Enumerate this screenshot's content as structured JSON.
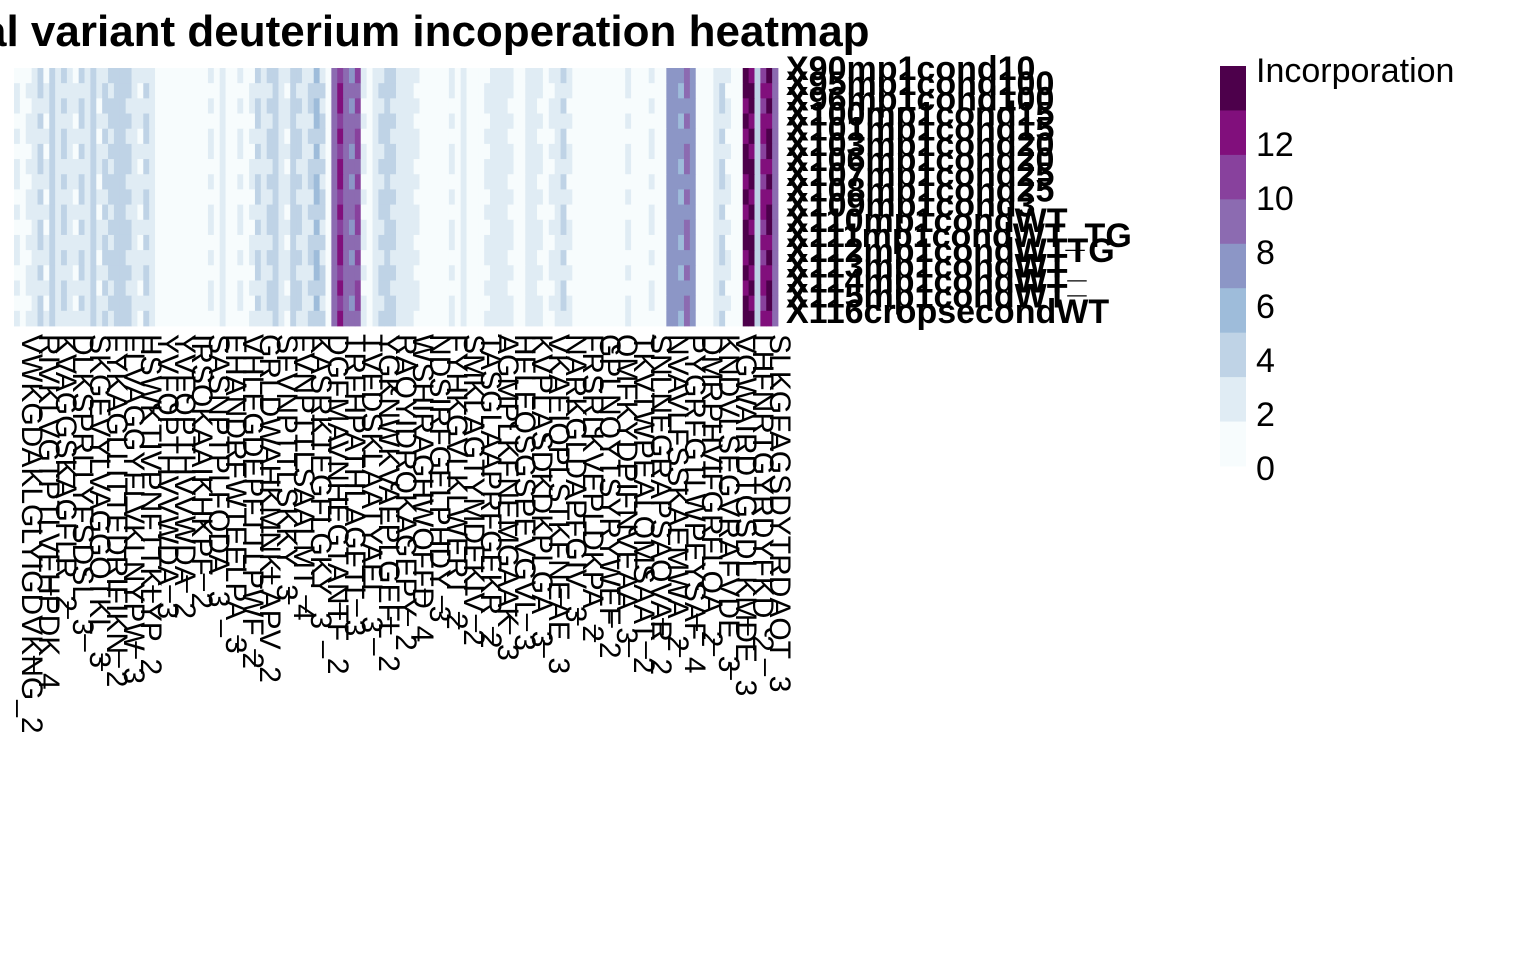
{
  "chart_data": {
    "type": "heatmap",
    "title": "al variant deuterium incoperation heatmap",
    "rows": [
      "X90mp1cond10",
      "X95mp1cond100",
      "X96mp1cond100",
      "X100mp1cond15",
      "X101mp1cond15",
      "X103mp1cond20",
      "X106mp1cond20",
      "X107mp1cond25",
      "X108mp1cond25",
      "X109mp1cond3",
      "X110mp1condWT",
      "X111mp1condWT_TG",
      "X112mp1condWTTG",
      "X113mp1condWT_",
      "X114mp1condWT_",
      "X115mp1condWT",
      "X116cropsecondWT"
    ],
    "col_labels": [
      "VWKGDAKLGLYIGDVKNG_2",
      "RIVKLVGTPTLVEHPDK_4",
      "KVAGGSKAGFLR_2",
      "DLKSPRLLYFSDSL_3",
      "SKGEVYLVAGGQTKL_3",
      "FYKAGLLITTEDRIFIKN_2",
      "FLVAGGYFLVKLNYPW_3",
      "HSWKTIVPNFTTKLYP_2",
      "YVFQPTHVVWDA_3",
      "YVFQPTHVVWDA_2",
      "IRSQKAAIKHKPF_2",
      "SASNPTPLFQDA_3",
      "EHANDRFWTEELPA_3",
      "VHLEGDEPFTTLPWF_2",
      "GRLDWAHKMNKLAPV_2",
      "SFVNPTTLSKKY_3",
      "FVNPTTLSAALMT_4",
      "KASRKTEGFLGKY_3",
      "DGFMAVNHEGTANTF_2",
      "TRFHPATHLAGFTL_3",
      "TVFDSKLAATYAEL_3",
      "YGKNWKVAFPLGEFL_2",
      "RAQYIDRQKAGEPY_2",
      "WSHIRAGHWQFFD_4",
      "NDSIRFGELPHDY_3",
      "FYHKGVLKLWERT_2",
      "SMKLAGTYMDEKIV_2",
      "TASGLAAPRFGEKR_2",
      "AGMPLKFNEMGAAK_3",
      "HFLEQSGSPEVGVL_3",
      "KVPLASDKDKPLGA_3",
      "VKAEIQPLSTKFNEAE_3",
      "NARKGLDAPFGIV_3",
      "FRSRLKVEPLDKPA_2",
      "GPLNQYTSYRYWEF_2",
      "QMFKYDPIFNVEAA_3",
      "TKVTWPEALQMSAAT_2",
      "SNLNEGRAPSAQVAR_2",
      "NVAVLFSSKAEMWA_2",
      "PYGRFGTLWPEYSAF_4",
      "DMRPHVIFGRFLQA_2",
      "KNDVLSEGVRAFVDE_3",
      "VGWAIRDTGSDLKMDE_3",
      "LHFNRTGYRDYFKD_2",
      "SLKGFAGSDYTRDAQT_3"
    ],
    "n_cols": 130,
    "color_scale": {
      "name": "Incorporation",
      "breaks": [
        0,
        2,
        4,
        6,
        8,
        10,
        12
      ],
      "tick_labels": [
        "0",
        "2",
        "4",
        "6",
        "8",
        "10",
        "12"
      ],
      "colors": [
        "#f7fcfd",
        "#e0ecf4",
        "#bfd3e6",
        "#9ebcda",
        "#8c96c6",
        "#8c6bb1",
        "#88419d",
        "#810f7c",
        "#4d004b"
      ]
    },
    "column_profile": [
      2,
      1,
      2,
      3,
      4,
      2,
      5,
      3,
      4,
      3,
      2,
      4,
      3,
      5,
      2,
      4,
      4,
      5,
      5,
      4,
      3,
      2,
      4,
      3,
      1,
      1,
      1,
      0,
      0,
      1,
      0,
      1,
      0,
      2,
      1,
      3,
      0,
      1,
      2,
      0,
      2,
      4,
      3,
      4,
      5,
      3,
      2,
      5,
      4,
      3,
      4,
      6,
      4,
      1,
      11,
      13,
      11,
      10,
      12,
      2,
      0,
      3,
      4,
      5,
      4,
      3,
      3,
      3,
      2,
      0,
      1,
      0,
      1,
      0,
      2,
      1,
      3,
      1,
      0,
      0,
      2,
      3,
      3,
      3,
      2,
      1,
      0,
      3,
      3,
      2,
      1,
      2,
      3,
      4,
      2,
      0,
      0,
      1,
      0,
      0,
      1,
      0,
      1,
      0,
      2,
      1,
      0,
      0,
      2,
      0,
      1,
      9,
      9,
      8,
      10,
      9,
      1,
      1,
      0,
      3,
      4,
      2,
      1,
      0,
      14,
      14,
      5,
      13,
      14,
      11
    ]
  }
}
